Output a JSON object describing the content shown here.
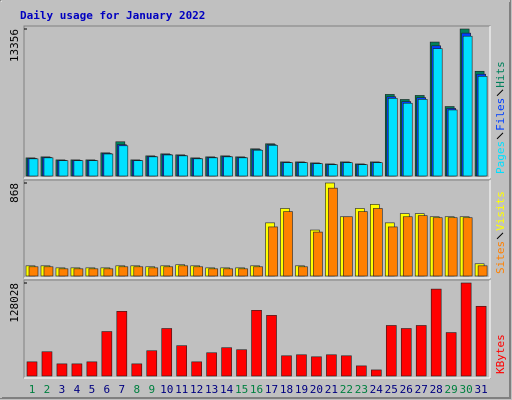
{
  "chart_data": [
    {
      "type": "bar",
      "title": "Daily usage for January 2022",
      "ylim": [
        0,
        13356
      ],
      "yticks": [
        13356
      ],
      "series": [
        {
          "name": "Hits",
          "color": "#00805c",
          "values": [
            1647,
            1739,
            1464,
            1464,
            1464,
            2105,
            3111,
            1464,
            1830,
            2013,
            1922,
            1647,
            1739,
            1830,
            1739,
            2471,
            2928,
            1281,
            1281,
            1190,
            1098,
            1281,
            1098,
            1281,
            7412,
            6954,
            7320,
            12170,
            6314,
            13356,
            9516
          ]
        },
        {
          "name": "Files",
          "color": "#0040ff",
          "values": [
            1600,
            1690,
            1420,
            1420,
            1420,
            2050,
            2850,
            1420,
            1780,
            1960,
            1870,
            1600,
            1690,
            1780,
            1690,
            2400,
            2850,
            1240,
            1240,
            1150,
            1060,
            1240,
            1060,
            1240,
            7200,
            6760,
            7120,
            11830,
            6140,
            12980,
            9250
          ]
        },
        {
          "name": "Pages",
          "color": "#00e0ff",
          "values": [
            1560,
            1650,
            1390,
            1390,
            1390,
            2000,
            2745,
            1390,
            1740,
            1910,
            1830,
            1560,
            1650,
            1740,
            1650,
            2340,
            2780,
            1210,
            1210,
            1120,
            1030,
            1210,
            1030,
            1210,
            7050,
            6610,
            6960,
            11570,
            6000,
            12700,
            9050
          ]
        }
      ]
    },
    {
      "type": "bar",
      "ylim": [
        0,
        868
      ],
      "yticks": [
        868
      ],
      "series": [
        {
          "name": "Visits",
          "color": "#ffff00",
          "values": [
            95,
            95,
            76,
            76,
            76,
            76,
            95,
            95,
            86,
            95,
            105,
            95,
            76,
            76,
            76,
            95,
            496,
            630,
            95,
            429,
            868,
            553,
            630,
            668,
            496,
            582,
            582,
            553,
            553,
            553,
            114
          ]
        },
        {
          "name": "Sites",
          "color": "#ff8000",
          "values": [
            86,
            86,
            67,
            67,
            67,
            67,
            86,
            86,
            76,
            86,
            95,
            86,
            67,
            67,
            67,
            86,
            458,
            601,
            86,
            410,
            820,
            553,
            601,
            630,
            458,
            553,
            563,
            544,
            544,
            544,
            95
          ]
        }
      ]
    },
    {
      "type": "bar",
      "ylim": [
        0,
        128028
      ],
      "yticks": [
        128028
      ],
      "categories": [
        "1",
        "2",
        "3",
        "4",
        "5",
        "6",
        "7",
        "8",
        "9",
        "10",
        "11",
        "12",
        "13",
        "14",
        "15",
        "16",
        "17",
        "18",
        "19",
        "20",
        "21",
        "22",
        "23",
        "24",
        "25",
        "26",
        "27",
        "28",
        "29",
        "30",
        "31"
      ],
      "category_colors": [
        "#008040",
        "#008040",
        "#000080",
        "#000080",
        "#000080",
        "#000080",
        "#000080",
        "#008040",
        "#008040",
        "#000080",
        "#000080",
        "#000080",
        "#000080",
        "#000080",
        "#008040",
        "#008040",
        "#000080",
        "#000080",
        "#000080",
        "#000080",
        "#000080",
        "#008040",
        "#008040",
        "#000080",
        "#000080",
        "#000080",
        "#000080",
        "#000080",
        "#008040",
        "#008040",
        "#000080"
      ],
      "series": [
        {
          "name": "KBytes",
          "color": "#ff0000",
          "values": [
            19474,
            33384,
            16692,
            16692,
            19474,
            61204,
            89024,
            16692,
            34775,
            65377,
            41730,
            19474,
            31993,
            38948,
            36166,
            90415,
            83460,
            27820,
            29211,
            26429,
            29211,
            27820,
            13910,
            8346,
            69550,
            65377,
            69550,
            119626,
            59813,
            128028,
            95979
          ]
        }
      ]
    }
  ]
}
